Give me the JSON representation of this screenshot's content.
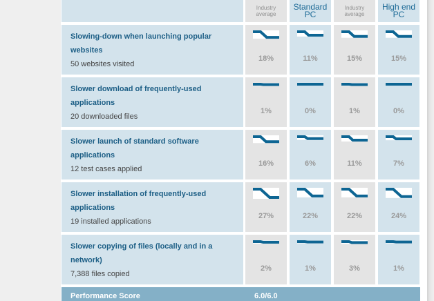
{
  "colors": {
    "accent": "#0d6593",
    "cell_blue": "#d3e3ec",
    "cell_gray": "#e4e4e4",
    "footer_bg": "#84b0c7",
    "title_text": "#1d5f86"
  },
  "header": {
    "columns": [
      {
        "label_line1": "Industry",
        "label_line2": "average",
        "style": "small"
      },
      {
        "label_line1": "Standard",
        "label_line2": "PC",
        "style": "big"
      },
      {
        "label_line1": "Industry",
        "label_line2": "average",
        "style": "small"
      },
      {
        "label_line1": "High end",
        "label_line2": "PC",
        "style": "big"
      }
    ]
  },
  "rows": [
    {
      "title": "Slowing-down when launching popular websites",
      "subtitle": "50 websites visited",
      "values": [
        "18%",
        "11%",
        "15%",
        "15%"
      ],
      "numeric": [
        18,
        11,
        15,
        15
      ]
    },
    {
      "title": "Slower download of frequently-used applications",
      "subtitle": "20 downloaded files",
      "values": [
        "1%",
        "0%",
        "1%",
        "0%"
      ],
      "numeric": [
        1,
        0,
        1,
        0
      ]
    },
    {
      "title": "Slower launch of standard software applications",
      "subtitle": "12 test cases applied",
      "values": [
        "16%",
        "6%",
        "11%",
        "7%"
      ],
      "numeric": [
        16,
        6,
        11,
        7
      ]
    },
    {
      "title": "Slower installation of frequently-used applications",
      "subtitle": "19 installed applications",
      "values": [
        "27%",
        "22%",
        "22%",
        "24%"
      ],
      "numeric": [
        27,
        22,
        22,
        24
      ]
    },
    {
      "title": "Slower copying of files (locally and in a network)",
      "subtitle": "7,388 files copied",
      "values": [
        "2%",
        "1%",
        "3%",
        "1%"
      ],
      "numeric": [
        2,
        1,
        3,
        1
      ]
    }
  ],
  "footer": {
    "label": "Performance Score",
    "score": "6.0/6.0"
  },
  "icons": {
    "slowdown_chart": "step-down-line-icon"
  }
}
